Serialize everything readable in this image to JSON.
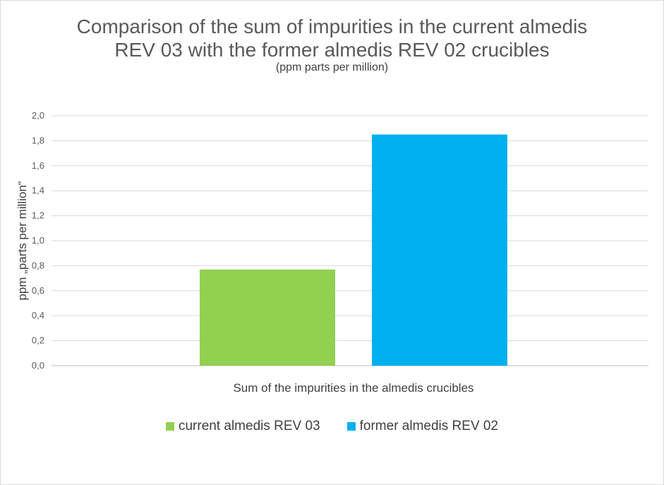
{
  "chart_data": {
    "type": "bar",
    "title_lines": [
      "Comparison of the sum of impurities in the current almedis",
      "REV 03 with the former almedis REV 02 crucibles"
    ],
    "subtitle": "(ppm parts per million)",
    "xlabel": "Sum of the impurities in the almedis crucibles",
    "ylabel": "ppm „parts per million“",
    "ylim": [
      0,
      2.0
    ],
    "yticks": [
      "0,0",
      "0,2",
      "0,4",
      "0,6",
      "0,8",
      "1,0",
      "1,2",
      "1,4",
      "1,6",
      "1,8",
      "2,0"
    ],
    "grid": true,
    "legend_position": "bottom",
    "series": [
      {
        "name": "current almedis REV 03",
        "value": 0.77,
        "color": "#92d050"
      },
      {
        "name": "former almedis REV 02",
        "value": 1.85,
        "color": "#00b0f0"
      }
    ]
  }
}
